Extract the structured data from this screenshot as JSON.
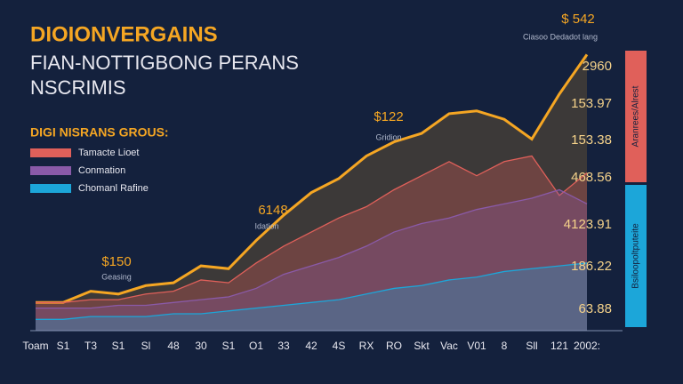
{
  "chart_data": {
    "type": "area",
    "title": "DIOIONVERGAINS",
    "subtitle": [
      "FIAN-NOTTIGBONG PERANS",
      "NSCRIMIS"
    ],
    "legend_title": "DIGI NISRANS GROUS:",
    "categories": [
      "Toam",
      "S1",
      "T3",
      "S1",
      "Sl",
      "48",
      "30",
      "S1",
      "O1",
      "33",
      "42",
      "4S",
      "RX",
      "RO",
      "Skt",
      "Vac",
      "V01",
      "8",
      "Sll",
      "121",
      "2002:"
    ],
    "ylim": [
      0,
      100
    ],
    "top_line": {
      "color": "#f5a623",
      "values": [
        10,
        10,
        14,
        13,
        16,
        17,
        23,
        22,
        32,
        41,
        49,
        54,
        62,
        67,
        70,
        77,
        78,
        75,
        68,
        84,
        98
      ]
    },
    "series": [
      {
        "name": "Tamacte Lioet",
        "color": "#e0605a",
        "values": [
          10,
          10,
          11,
          11,
          13,
          14,
          18,
          17,
          24,
          30,
          35,
          40,
          44,
          50,
          55,
          60,
          55,
          60,
          62,
          48,
          56
        ]
      },
      {
        "name": "Conmation",
        "color": "#8a5aa8",
        "values": [
          8,
          8,
          8,
          9,
          9,
          10,
          11,
          12,
          15,
          20,
          23,
          26,
          30,
          35,
          38,
          40,
          43,
          45,
          47,
          50,
          45
        ]
      },
      {
        "name": "Chomanl Rafine",
        "color": "#1ca6d9",
        "values": [
          4,
          4,
          5,
          5,
          5,
          6,
          6,
          7,
          8,
          9,
          10,
          11,
          13,
          15,
          16,
          18,
          19,
          21,
          22,
          23,
          24
        ]
      }
    ],
    "annotations": [
      {
        "value": "$ 542",
        "note": "Ciasoo Dedadot lang"
      },
      {
        "value": "$122",
        "note": "Gridion"
      },
      {
        "value": "6148",
        "note": "Idation"
      },
      {
        "value": "$150",
        "note": "Geasing"
      }
    ],
    "side_labels": [
      "2960",
      "153.97",
      "153.38",
      "468.56",
      "4123.91",
      "186.22",
      "63.88"
    ],
    "side_bars": [
      {
        "label": "Aranrees/Alrest",
        "color": "#e0605a"
      },
      {
        "label": "Bsiloopoltputeite",
        "color": "#1ca6d9"
      }
    ]
  }
}
